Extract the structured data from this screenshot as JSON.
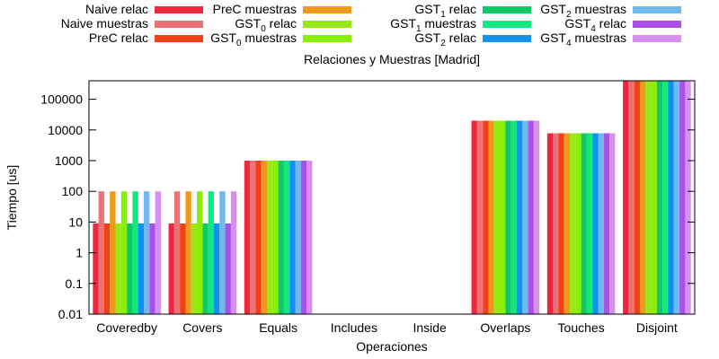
{
  "chart_data": {
    "type": "bar",
    "title": "Relaciones y Muestras [Madrid]",
    "xlabel": "Operaciones",
    "ylabel": "Tiempo [us]",
    "yscale": "log",
    "ylim": [
      0.01,
      400000
    ],
    "yticks": [
      "0.01",
      "0.1",
      "1",
      "10",
      "100",
      "1000",
      "10000",
      "100000"
    ],
    "grid": false,
    "legend_position": "top",
    "categories": [
      "Coveredby",
      "Covers",
      "Equals",
      "Includes",
      "Inside",
      "Overlaps",
      "Touches",
      "Disjoint"
    ],
    "series": [
      {
        "name": "Naive relac",
        "base": "Naive relac",
        "sub": "",
        "tail": "",
        "color": "#f0263c",
        "values": [
          9,
          9,
          1000,
          0,
          0,
          20000,
          7800,
          400000
        ]
      },
      {
        "name": "Naive muestras",
        "base": "Naive muestras",
        "sub": "",
        "tail": "",
        "color": "#f07078",
        "values": [
          100,
          100,
          1000,
          0,
          0,
          20000,
          7800,
          400000
        ]
      },
      {
        "name": "PreC relac",
        "base": "PreC relac",
        "sub": "",
        "tail": "",
        "color": "#f04018",
        "values": [
          9,
          9,
          1000,
          0,
          0,
          20000,
          7800,
          400000
        ]
      },
      {
        "name": "PreC muestras",
        "base": "PreC muestras",
        "sub": "",
        "tail": "",
        "color": "#f09818",
        "values": [
          100,
          100,
          1000,
          0,
          0,
          20000,
          7800,
          400000
        ]
      },
      {
        "name": "GST0 relac",
        "base": "GST",
        "sub": "0",
        "tail": " relac",
        "color": "#98e818",
        "values": [
          9,
          9,
          1000,
          0,
          0,
          20000,
          7800,
          400000
        ]
      },
      {
        "name": "GST0 muestras",
        "base": "GST",
        "sub": "0",
        "tail": " muestras",
        "color": "#88f000",
        "values": [
          100,
          100,
          1000,
          0,
          0,
          20000,
          7800,
          400000
        ]
      },
      {
        "name": "GST1 relac",
        "base": "GST",
        "sub": "1",
        "tail": " relac",
        "color": "#10c868",
        "values": [
          9,
          9,
          1000,
          0,
          0,
          20000,
          7800,
          400000
        ]
      },
      {
        "name": "GST1 muestras",
        "base": "GST",
        "sub": "1",
        "tail": " muestras",
        "color": "#10e880",
        "values": [
          100,
          100,
          1000,
          0,
          0,
          20000,
          7800,
          400000
        ]
      },
      {
        "name": "GST2 relac",
        "base": "GST",
        "sub": "2",
        "tail": " relac",
        "color": "#1090f0",
        "values": [
          9,
          9,
          1000,
          0,
          0,
          20000,
          7800,
          400000
        ]
      },
      {
        "name": "GST2 muestras",
        "base": "GST",
        "sub": "2",
        "tail": " muestras",
        "color": "#70b8f0",
        "values": [
          100,
          100,
          1000,
          0,
          0,
          20000,
          7800,
          400000
        ]
      },
      {
        "name": "GST4 relac",
        "base": "GST",
        "sub": "4",
        "tail": " relac",
        "color": "#a850e8",
        "values": [
          9,
          9,
          1000,
          0,
          0,
          20000,
          7800,
          400000
        ]
      },
      {
        "name": "GST4 muestras",
        "base": "GST",
        "sub": "4",
        "tail": " muestras",
        "color": "#d890f0",
        "values": [
          100,
          100,
          1000,
          0,
          0,
          20000,
          7800,
          400000
        ]
      }
    ]
  }
}
